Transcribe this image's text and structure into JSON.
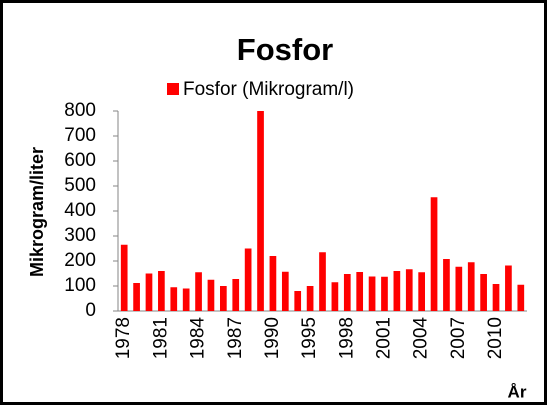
{
  "chart_data": {
    "type": "bar",
    "title": "Fosfor",
    "y_label": "Mikrogram/liter",
    "x_label": "År",
    "categories": [
      "1978",
      null,
      null,
      "1981",
      null,
      null,
      "1984",
      null,
      null,
      "1987",
      null,
      null,
      "1990",
      null,
      null,
      "1995",
      null,
      null,
      "1998",
      null,
      null,
      "2001",
      null,
      null,
      "2004",
      null,
      null,
      "2007",
      null,
      null,
      "2010",
      null,
      null
    ],
    "series": [
      {
        "name": "Fosfor (Mikrogram/l)",
        "color": "#ff0000",
        "values": [
          265,
          112,
          150,
          160,
          95,
          90,
          155,
          125,
          100,
          128,
          250,
          800,
          220,
          157,
          80,
          100,
          235,
          115,
          148,
          156,
          138,
          137,
          160,
          167,
          155,
          455,
          208,
          177,
          195,
          148,
          108,
          182,
          105
        ]
      }
    ],
    "ylim": [
      0,
      800
    ],
    "yticks": [
      0,
      100,
      200,
      300,
      400,
      500,
      600,
      700,
      800
    ],
    "grid": false,
    "legend": "top"
  }
}
